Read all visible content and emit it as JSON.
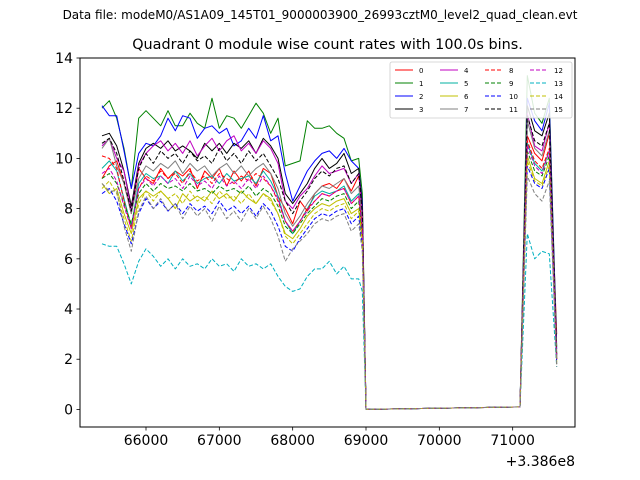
{
  "suptitle": "Data file: modeM0/AS1A09_145T01_9000003900_26993cztM0_level2_quad_clean.evt",
  "chart_data": {
    "type": "line",
    "title": "Quadrant 0 module wise count rates with 100.0s bins.",
    "xlabel": "",
    "ylabel": "",
    "offset_label": "+3.386e8",
    "xlim": [
      65100,
      71850
    ],
    "ylim": [
      -0.7,
      14
    ],
    "xticks": [
      66000,
      67000,
      68000,
      69000,
      70000,
      71000
    ],
    "yticks": [
      0,
      2,
      4,
      6,
      8,
      10,
      12,
      14
    ],
    "legend_position": "top-right",
    "gap": {
      "start": 69000,
      "end": 71100
    },
    "times_before_gap": [
      65400,
      65500,
      65600,
      65700,
      65800,
      65900,
      66000,
      66100,
      66200,
      66300,
      66400,
      66500,
      66600,
      66700,
      66800,
      66900,
      67000,
      67100,
      67200,
      67300,
      67400,
      67500,
      67600,
      67700,
      67800,
      67900,
      68000,
      68100,
      68200,
      68300,
      68400,
      68500,
      68600,
      68700,
      68800,
      68900,
      68950
    ],
    "times_after_gap": [
      71100,
      71200,
      71300,
      71400,
      71500,
      71600
    ],
    "series": [
      {
        "name": "0",
        "color": "#ff0000",
        "dash": false,
        "before": [
          9.2,
          9.7,
          9.9,
          9.0,
          7.8,
          9.6,
          9.2,
          9.0,
          9.6,
          9.2,
          9.5,
          9.3,
          9.6,
          8.8,
          9.5,
          9.2,
          9.6,
          8.9,
          9.5,
          9.1,
          9.5,
          8.9,
          9.6,
          9.4,
          8.5,
          8.0,
          7.4,
          8.3,
          7.9,
          8.6,
          8.9,
          9.0,
          8.8,
          9.2,
          8.7,
          9.3,
          8.4
        ],
        "after": [
          0.1,
          10.9,
          10.2,
          9.9,
          11.0,
          3.0
        ]
      },
      {
        "name": "1",
        "color": "#008000",
        "dash": false,
        "before": [
          12.0,
          12.3,
          11.6,
          10.4,
          8.8,
          11.6,
          11.9,
          11.6,
          11.3,
          11.9,
          11.3,
          11.3,
          11.8,
          11.4,
          11.2,
          12.4,
          11.2,
          11.7,
          11.6,
          11.2,
          11.7,
          12.2,
          11.8,
          11.0,
          11.6,
          9.7,
          9.8,
          9.9,
          11.5,
          11.2,
          11.2,
          11.3,
          11.0,
          10.8,
          9.9,
          10.0,
          8.6
        ],
        "after": [
          0.1,
          13.3,
          11.8,
          11.4,
          12.4,
          2.5
        ]
      },
      {
        "name": "2",
        "color": "#0000ff",
        "dash": false,
        "before": [
          12.1,
          11.7,
          11.7,
          10.3,
          8.8,
          10.2,
          10.6,
          10.5,
          10.9,
          11.6,
          11.1,
          11.7,
          11.6,
          10.8,
          11.2,
          11.3,
          11.0,
          11.2,
          10.5,
          10.7,
          11.2,
          10.8,
          11.7,
          10.7,
          10.9,
          9.4,
          8.3,
          8.9,
          9.5,
          9.9,
          10.2,
          10.3,
          10.0,
          10.4,
          9.9,
          9.6,
          8.2
        ],
        "after": [
          0.1,
          12.4,
          11.5,
          11.1,
          12.2,
          2.4
        ]
      },
      {
        "name": "3",
        "color": "#000000",
        "dash": false,
        "before": [
          10.9,
          11.0,
          10.5,
          9.5,
          8.1,
          9.8,
          10.4,
          10.6,
          10.4,
          10.7,
          10.3,
          10.5,
          10.3,
          10.0,
          10.6,
          10.3,
          10.6,
          10.2,
          10.6,
          10.4,
          10.7,
          10.2,
          10.8,
          10.5,
          10.0,
          8.6,
          8.2,
          8.6,
          9.0,
          9.6,
          10.0,
          9.6,
          9.8,
          10.2,
          9.4,
          9.6,
          8.0
        ],
        "after": [
          0.1,
          12.1,
          11.1,
          10.9,
          11.8,
          2.2
        ]
      },
      {
        "name": "4",
        "color": "#c000c0",
        "dash": false,
        "before": [
          10.5,
          10.8,
          10.0,
          9.5,
          7.9,
          9.7,
          10.2,
          10.5,
          10.7,
          10.3,
          10.6,
          10.2,
          10.7,
          10.1,
          10.5,
          10.8,
          10.3,
          10.7,
          10.9,
          10.3,
          10.6,
          10.2,
          10.7,
          10.4,
          9.8,
          8.3,
          8.0,
          8.5,
          8.8,
          9.3,
          9.7,
          9.4,
          9.5,
          9.6,
          9.0,
          9.4,
          7.8
        ],
        "after": [
          0.1,
          11.8,
          10.5,
          10.3,
          11.4,
          2.0
        ]
      },
      {
        "name": "5",
        "color": "#00b0a0",
        "dash": false,
        "before": [
          9.6,
          9.9,
          9.5,
          8.4,
          7.3,
          9.0,
          9.4,
          9.2,
          9.3,
          9.0,
          9.5,
          9.1,
          9.4,
          9.0,
          9.2,
          9.3,
          9.0,
          9.4,
          9.1,
          9.2,
          9.3,
          9.0,
          9.5,
          9.1,
          8.5,
          7.5,
          7.0,
          7.5,
          8.0,
          8.5,
          8.7,
          8.6,
          8.7,
          8.9,
          8.3,
          8.6,
          7.2
        ],
        "after": [
          0.1,
          10.6,
          9.8,
          9.5,
          10.3,
          2.0
        ]
      },
      {
        "name": "6",
        "color": "#c0c000",
        "dash": false,
        "before": [
          9.0,
          8.6,
          8.8,
          7.8,
          7.0,
          8.4,
          8.7,
          8.5,
          8.7,
          8.4,
          8.0,
          8.6,
          8.3,
          8.5,
          8.3,
          8.7,
          8.4,
          8.6,
          8.3,
          8.7,
          8.4,
          8.2,
          8.6,
          8.4,
          7.8,
          7.0,
          6.8,
          7.2,
          7.7,
          8.0,
          8.2,
          8.1,
          8.3,
          8.4,
          7.8,
          8.0,
          6.8
        ],
        "after": [
          0.1,
          10.1,
          9.2,
          9.0,
          9.9,
          1.9
        ]
      },
      {
        "name": "7",
        "color": "#808080",
        "dash": false,
        "before": [
          10.4,
          10.8,
          9.7,
          9.0,
          7.8,
          9.2,
          9.7,
          9.5,
          9.8,
          9.6,
          9.9,
          9.4,
          9.8,
          9.5,
          9.7,
          9.3,
          9.6,
          9.8,
          9.4,
          9.7,
          9.3,
          9.6,
          9.8,
          9.4,
          8.8,
          7.8,
          7.3,
          7.7,
          8.2,
          8.6,
          8.9,
          8.8,
          9.0,
          9.2,
          8.6,
          8.9,
          7.5
        ],
        "after": [
          0.1,
          11.5,
          10.4,
          10.1,
          11.1,
          2.1
        ]
      },
      {
        "name": "8",
        "color": "#ff0000",
        "dash": true,
        "before": [
          10.1,
          10.0,
          9.6,
          8.3,
          7.2,
          8.8,
          9.3,
          9.1,
          9.5,
          9.2,
          9.4,
          9.0,
          9.5,
          9.1,
          9.3,
          9.0,
          9.4,
          9.2,
          9.0,
          9.3,
          9.1,
          9.4,
          9.2,
          8.9,
          8.3,
          7.5,
          7.1,
          7.5,
          8.0,
          8.3,
          8.6,
          8.5,
          8.7,
          8.8,
          8.2,
          8.5,
          7.2
        ],
        "after": [
          0.1,
          10.7,
          9.9,
          9.6,
          10.4,
          2.0
        ]
      },
      {
        "name": "9",
        "color": "#008000",
        "dash": true,
        "before": [
          9.2,
          9.4,
          9.0,
          8.2,
          7.4,
          8.6,
          9.0,
          8.7,
          9.0,
          8.8,
          8.9,
          8.7,
          9.0,
          8.7,
          8.8,
          8.6,
          8.9,
          8.7,
          8.8,
          8.6,
          8.9,
          8.5,
          8.8,
          8.6,
          8.1,
          7.3,
          7.0,
          7.4,
          7.8,
          8.1,
          8.4,
          8.3,
          8.5,
          8.6,
          8.0,
          8.3,
          7.0
        ],
        "after": [
          0.1,
          10.3,
          9.5,
          9.3,
          10.1,
          1.9
        ]
      },
      {
        "name": "10",
        "color": "#0000ff",
        "dash": true,
        "before": [
          8.6,
          8.8,
          8.3,
          7.4,
          6.6,
          7.8,
          8.4,
          8.0,
          8.3,
          7.9,
          8.2,
          7.8,
          8.2,
          7.9,
          8.1,
          7.8,
          8.3,
          7.9,
          8.1,
          7.8,
          8.1,
          7.7,
          8.2,
          7.9,
          7.3,
          6.5,
          6.3,
          6.8,
          7.2,
          7.6,
          7.8,
          7.7,
          7.9,
          8.0,
          7.4,
          7.7,
          6.5
        ],
        "after": [
          0.1,
          9.7,
          9.0,
          8.8,
          9.6,
          1.8
        ]
      },
      {
        "name": "11",
        "color": "#000000",
        "dash": true,
        "before": [
          10.6,
          10.8,
          10.2,
          9.1,
          7.9,
          9.6,
          10.2,
          9.8,
          10.3,
          10.0,
          10.2,
          9.8,
          10.3,
          9.9,
          10.1,
          9.8,
          10.4,
          9.9,
          10.2,
          9.8,
          10.3,
          9.9,
          10.2,
          9.7,
          9.2,
          8.3,
          7.8,
          8.3,
          8.7,
          9.2,
          9.5,
          9.3,
          9.6,
          9.7,
          9.0,
          9.4,
          7.8
        ],
        "after": [
          0.1,
          11.7,
          10.7,
          10.5,
          11.4,
          2.1
        ]
      },
      {
        "name": "12",
        "color": "#c000c0",
        "dash": true,
        "before": [
          9.4,
          9.6,
          9.1,
          8.1,
          7.2,
          8.8,
          9.2,
          8.9,
          9.3,
          9.0,
          9.2,
          8.8,
          9.3,
          8.9,
          9.1,
          8.8,
          9.3,
          8.9,
          9.1,
          8.8,
          9.2,
          8.8,
          9.3,
          8.9,
          8.4,
          7.5,
          7.1,
          7.5,
          7.9,
          8.3,
          8.6,
          8.5,
          8.7,
          8.8,
          8.2,
          8.5,
          7.2
        ],
        "after": [
          0.1,
          10.5,
          9.7,
          9.4,
          10.3,
          2.0
        ]
      },
      {
        "name": "13",
        "color": "#00b0c0",
        "dash": true,
        "before": [
          6.6,
          6.5,
          6.5,
          5.8,
          5.0,
          5.9,
          6.4,
          6.1,
          5.7,
          6.0,
          5.6,
          6.0,
          5.7,
          5.8,
          5.6,
          6.0,
          5.7,
          5.8,
          5.5,
          6.0,
          5.7,
          5.8,
          5.6,
          5.8,
          5.3,
          4.9,
          4.7,
          4.8,
          5.3,
          5.6,
          5.6,
          5.9,
          5.4,
          5.7,
          5.2,
          5.2,
          4.7
        ],
        "after": [
          0.1,
          7.0,
          6.0,
          6.3,
          6.2,
          1.7
        ]
      },
      {
        "name": "14",
        "color": "#c0c000",
        "dash": true,
        "before": [
          8.8,
          9.1,
          8.6,
          7.6,
          6.7,
          8.2,
          8.7,
          8.3,
          8.7,
          8.4,
          8.6,
          8.2,
          8.7,
          8.3,
          8.5,
          8.2,
          8.7,
          8.4,
          8.5,
          8.2,
          8.6,
          8.2,
          8.6,
          8.3,
          7.8,
          6.9,
          6.6,
          7.0,
          7.4,
          7.8,
          8.0,
          7.9,
          8.1,
          8.2,
          7.6,
          7.9,
          6.7
        ],
        "after": [
          0.1,
          9.9,
          9.1,
          8.9,
          9.7,
          1.8
        ]
      },
      {
        "name": "15",
        "color": "#808080",
        "dash": true,
        "before": [
          9.0,
          8.7,
          8.7,
          7.3,
          6.3,
          7.9,
          8.5,
          8.0,
          8.4,
          7.9,
          8.2,
          7.6,
          8.1,
          7.7,
          8.0,
          7.5,
          8.1,
          7.6,
          7.9,
          7.5,
          8.0,
          7.6,
          8.1,
          7.6,
          6.9,
          5.9,
          6.4,
          6.7,
          7.0,
          7.4,
          7.6,
          7.5,
          7.7,
          7.8,
          7.1,
          7.4,
          6.3
        ],
        "after": [
          0.1,
          9.3,
          8.6,
          8.3,
          9.1,
          1.7
        ]
      }
    ]
  }
}
